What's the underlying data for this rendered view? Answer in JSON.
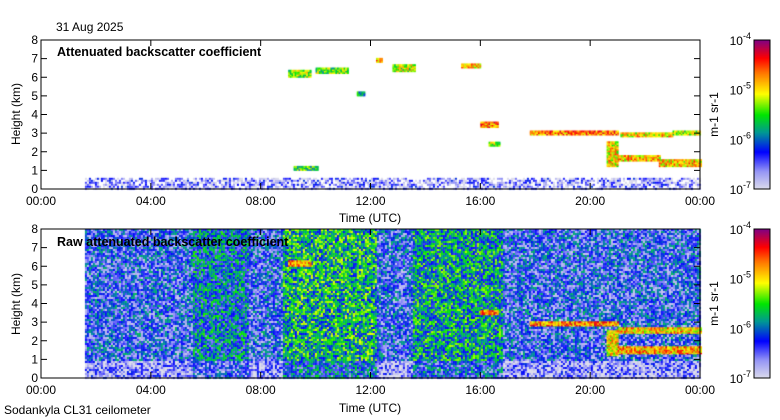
{
  "header": {
    "date": "31 Aug 2025"
  },
  "footer": {
    "instrument": "Sodankyla CL31 ceilometer"
  },
  "chart_data": [
    {
      "type": "heatmap",
      "title": "Attenuated backscatter coefficient",
      "xlabel": "Time (UTC)",
      "ylabel": "Height (km)",
      "xlim": [
        0,
        24
      ],
      "ylim": [
        0,
        8
      ],
      "x_ticks": [
        "00:00",
        "04:00",
        "08:00",
        "12:00",
        "16:00",
        "20:00",
        "00:00"
      ],
      "y_ticks": [
        "0",
        "1",
        "2",
        "3",
        "4",
        "5",
        "6",
        "7",
        "8"
      ],
      "colorbar": {
        "label": "m-1 sr-1",
        "scale": "log",
        "range": [
          1e-07,
          0.0001
        ],
        "ticks": [
          "10-7",
          "10-6",
          "10-5",
          "10-4"
        ]
      },
      "data_start_hour": 1.6,
      "background_noise": {
        "height_top_km": 0.6,
        "level_log10": -6.7
      },
      "features": [
        {
          "t0": 9.0,
          "t1": 9.8,
          "h0": 6.0,
          "h1": 6.4,
          "log10": -5.3
        },
        {
          "t0": 10.0,
          "t1": 11.2,
          "h0": 6.2,
          "h1": 6.5,
          "log10": -5.4
        },
        {
          "t0": 11.5,
          "t1": 11.8,
          "h0": 5.0,
          "h1": 5.2,
          "log10": -5.6
        },
        {
          "t0": 12.2,
          "t1": 12.4,
          "h0": 6.8,
          "h1": 7.0,
          "log10": -4.8
        },
        {
          "t0": 12.8,
          "t1": 13.6,
          "h0": 6.3,
          "h1": 6.7,
          "log10": -5.2
        },
        {
          "t0": 15.3,
          "t1": 16.0,
          "h0": 6.5,
          "h1": 6.7,
          "log10": -5.0
        },
        {
          "t0": 9.2,
          "t1": 10.1,
          "h0": 1.0,
          "h1": 1.2,
          "log10": -5.5
        },
        {
          "t0": 16.0,
          "t1": 16.6,
          "h0": 3.3,
          "h1": 3.6,
          "log10": -4.7
        },
        {
          "t0": 16.3,
          "t1": 16.7,
          "h0": 2.3,
          "h1": 2.5,
          "log10": -5.2
        },
        {
          "t0": 17.8,
          "t1": 21.0,
          "h0": 2.9,
          "h1": 3.1,
          "log10": -4.7
        },
        {
          "t0": 21.1,
          "t1": 23.0,
          "h0": 2.8,
          "h1": 3.0,
          "log10": -5.0
        },
        {
          "t0": 23.0,
          "t1": 24.0,
          "h0": 2.9,
          "h1": 3.1,
          "log10": -5.2
        },
        {
          "t0": 20.6,
          "t1": 21.0,
          "h0": 1.2,
          "h1": 2.5,
          "log10": -5.0
        },
        {
          "t0": 21.0,
          "t1": 22.5,
          "h0": 1.5,
          "h1": 1.8,
          "log10": -4.9
        },
        {
          "t0": 22.5,
          "t1": 24.0,
          "h0": 1.2,
          "h1": 1.6,
          "log10": -4.9
        }
      ]
    },
    {
      "type": "heatmap",
      "title": "Raw attenuated backscatter coefficient",
      "xlabel": "Time (UTC)",
      "ylabel": "Height (km)",
      "xlim": [
        0,
        24
      ],
      "ylim": [
        0,
        8
      ],
      "x_ticks": [
        "00:00",
        "04:00",
        "08:00",
        "12:00",
        "16:00",
        "20:00",
        "00:00"
      ],
      "y_ticks": [
        "0",
        "1",
        "2",
        "3",
        "4",
        "5",
        "6",
        "7",
        "8"
      ],
      "colorbar": {
        "label": "m-1 sr-1",
        "scale": "log",
        "range": [
          1e-07,
          0.0001
        ],
        "ticks": [
          "10-7",
          "10-6",
          "10-5",
          "10-4"
        ]
      },
      "data_start_hour": 1.6,
      "background_noise": {
        "height_top_km": 8,
        "level_log10": -6.3
      },
      "noisy_periods": [
        {
          "t0": 8.8,
          "t1": 12.2,
          "level_log10": -5.7
        },
        {
          "t0": 13.5,
          "t1": 16.8,
          "level_log10": -5.8
        },
        {
          "t0": 5.5,
          "t1": 7.5,
          "level_log10": -6.0
        }
      ],
      "features": [
        {
          "t0": 9.0,
          "t1": 9.8,
          "h0": 6.0,
          "h1": 6.3,
          "log10": -4.8
        },
        {
          "t0": 16.0,
          "t1": 16.6,
          "h0": 3.4,
          "h1": 3.6,
          "log10": -4.7
        },
        {
          "t0": 17.8,
          "t1": 21.0,
          "h0": 2.8,
          "h1": 3.0,
          "log10": -4.7
        },
        {
          "t0": 21.0,
          "t1": 24.0,
          "h0": 2.4,
          "h1": 2.7,
          "log10": -4.9
        },
        {
          "t0": 20.6,
          "t1": 21.0,
          "h0": 1.2,
          "h1": 2.5,
          "log10": -5.0
        },
        {
          "t0": 21.0,
          "t1": 24.0,
          "h0": 1.3,
          "h1": 1.7,
          "log10": -4.8
        }
      ]
    }
  ]
}
